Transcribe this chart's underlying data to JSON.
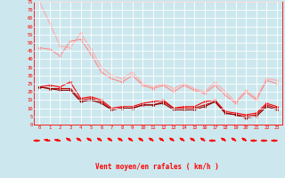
{
  "bg_color": "#cce8ee",
  "grid_color": "#ffffff",
  "xlabel": "Vent moyen/en rafales ( km/h )",
  "xlim": [
    -0.5,
    23.5
  ],
  "ylim": [
    0,
    75
  ],
  "yticks": [
    0,
    5,
    10,
    15,
    20,
    25,
    30,
    35,
    40,
    45,
    50,
    55,
    60,
    65,
    70,
    75
  ],
  "xticks": [
    0,
    1,
    2,
    3,
    4,
    5,
    6,
    7,
    8,
    9,
    10,
    11,
    12,
    13,
    14,
    15,
    16,
    17,
    18,
    19,
    20,
    21,
    22,
    23
  ],
  "line1": {
    "x": [
      0,
      1,
      2,
      3,
      4,
      5,
      6,
      7,
      8,
      9,
      10,
      11,
      12,
      13,
      14,
      15,
      16,
      17,
      18,
      19,
      20,
      21,
      22,
      23
    ],
    "y": [
      75,
      62,
      48,
      47,
      56,
      46,
      35,
      30,
      28,
      32,
      25,
      23,
      25,
      22,
      25,
      22,
      20,
      26,
      20,
      14,
      21,
      16,
      28,
      27
    ],
    "color": "#ffaaaa",
    "marker": "D",
    "lw": 0.8,
    "ms": 1.5
  },
  "line2": {
    "x": [
      0,
      1,
      2,
      3,
      4,
      5,
      6,
      7,
      8,
      9,
      10,
      11,
      12,
      13,
      14,
      15,
      16,
      17,
      18,
      19,
      20,
      21,
      22,
      23
    ],
    "y": [
      47,
      46,
      42,
      51,
      52,
      43,
      32,
      28,
      26,
      30,
      24,
      22,
      24,
      20,
      24,
      21,
      19,
      24,
      18,
      13,
      20,
      15,
      27,
      25
    ],
    "color": "#ff8888",
    "marker": "D",
    "lw": 0.8,
    "ms": 1.5
  },
  "line3": {
    "x": [
      0,
      1,
      2,
      3,
      4,
      5,
      6,
      7,
      8,
      9,
      10,
      11,
      12,
      13,
      14,
      15,
      16,
      17,
      18,
      19,
      20,
      21,
      22,
      23
    ],
    "y": [
      23,
      24,
      23,
      26,
      16,
      17,
      15,
      10,
      11,
      11,
      13,
      14,
      15,
      10,
      11,
      11,
      14,
      15,
      8,
      7,
      6,
      7,
      13,
      11
    ],
    "color": "#ff0000",
    "marker": "D",
    "lw": 0.8,
    "ms": 1.5
  },
  "line4": {
    "x": [
      0,
      1,
      2,
      3,
      4,
      5,
      6,
      7,
      8,
      9,
      10,
      11,
      12,
      13,
      14,
      15,
      16,
      17,
      18,
      19,
      20,
      21,
      22,
      23
    ],
    "y": [
      23,
      22,
      22,
      22,
      15,
      16,
      14,
      9,
      10,
      10,
      12,
      12,
      14,
      10,
      10,
      10,
      12,
      14,
      7,
      6,
      5,
      6,
      12,
      10
    ],
    "color": "#cc0000",
    "marker": "D",
    "lw": 0.8,
    "ms": 1.5
  },
  "line5": {
    "x": [
      0,
      1,
      2,
      3,
      4,
      5,
      6,
      7,
      8,
      9,
      10,
      11,
      12,
      13,
      14,
      15,
      16,
      17,
      18,
      19,
      20,
      21,
      22,
      23
    ],
    "y": [
      23,
      22,
      21,
      21,
      14,
      15,
      13,
      9,
      10,
      10,
      12,
      12,
      13,
      9,
      9,
      9,
      11,
      14,
      7,
      6,
      4,
      5,
      11,
      9
    ],
    "color": "#880000",
    "marker": "D",
    "lw": 0.8,
    "ms": 1.5
  },
  "arrow_color": "#ff0000",
  "arrow_angles": [
    270,
    255,
    255,
    225,
    225,
    225,
    225,
    225,
    225,
    225,
    225,
    225,
    225,
    225,
    225,
    225,
    225,
    270,
    225,
    225,
    225,
    270,
    270,
    270
  ]
}
